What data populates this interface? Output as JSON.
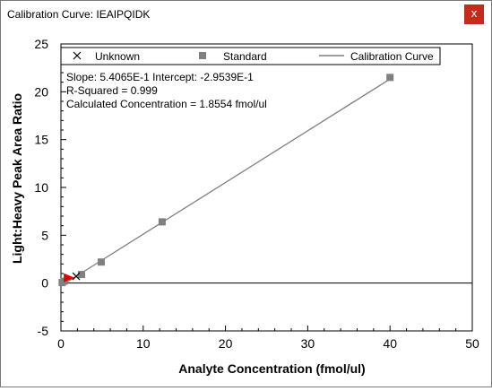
{
  "window": {
    "title": "Calibration Curve: IEAIPQIDK",
    "close_label": "x"
  },
  "legend": {
    "unknown": "Unknown",
    "standard": "Standard",
    "curve": "Calibration Curve"
  },
  "annotations": {
    "slope_line": "Slope: 5.4065E-1 Intercept: -2.9539E-1",
    "rsquared_line": "R-Squared = 0.999",
    "concentration_line": "Calculated Concentration = 1.8554 fmol/ul"
  },
  "colors": {
    "standard": "#808080",
    "curve": "#7f7f7f",
    "highlight": "#e00000",
    "close_button": "#c42b1c"
  },
  "chart_data": {
    "type": "scatter",
    "xlabel": "Analyte Concentration (fmol/ul)",
    "ylabel": "Light:Heavy Peak Area Ratio",
    "xlim": [
      0,
      50
    ],
    "ylim": [
      -5,
      25
    ],
    "x_ticks": [
      0,
      10,
      20,
      30,
      40,
      50
    ],
    "y_ticks": [
      -5,
      0,
      5,
      10,
      15,
      20,
      25
    ],
    "legend_position": "top",
    "grid": false,
    "calibration_curve": {
      "slope": 0.54065,
      "intercept": -0.29539,
      "x_range": [
        0.1,
        40
      ]
    },
    "standards": [
      {
        "x": 0.15,
        "y": 0.05
      },
      {
        "x": 0.4,
        "y": 0.2
      },
      {
        "x": 2.5,
        "y": 0.9
      },
      {
        "x": 4.9,
        "y": 2.2
      },
      {
        "x": 12.3,
        "y": 6.4
      },
      {
        "x": 40.0,
        "y": 21.5
      }
    ],
    "unknown": {
      "x": 1.8554,
      "y": 0.71
    },
    "highlight_marker": {
      "x": 1.0,
      "y": 0.55
    }
  }
}
